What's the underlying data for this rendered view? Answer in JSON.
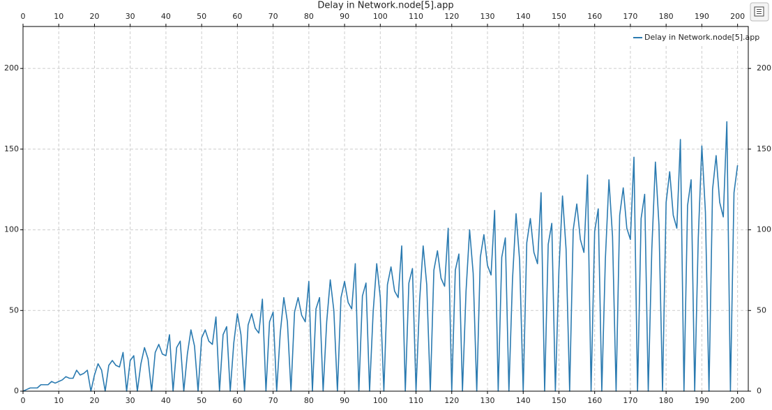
{
  "chart_data": {
    "type": "line",
    "title": "Delay in Network.node[5].app",
    "x": [
      0,
      1,
      2,
      3,
      4,
      5,
      6,
      7,
      8,
      9,
      10,
      11,
      12,
      13,
      14,
      15,
      16,
      17,
      18,
      19,
      20,
      21,
      22,
      23,
      24,
      25,
      26,
      27,
      28,
      29,
      30,
      31,
      32,
      33,
      34,
      35,
      36,
      37,
      38,
      39,
      40,
      41,
      42,
      43,
      44,
      45,
      46,
      47,
      48,
      49,
      50,
      51,
      52,
      53,
      54,
      55,
      56,
      57,
      58,
      59,
      60,
      61,
      62,
      63,
      64,
      65,
      66,
      67,
      68,
      69,
      70,
      71,
      72,
      73,
      74,
      75,
      76,
      77,
      78,
      79,
      80,
      81,
      82,
      83,
      84,
      85,
      86,
      87,
      88,
      89,
      90,
      91,
      92,
      93,
      94,
      95,
      96,
      97,
      98,
      99,
      100,
      101,
      102,
      103,
      104,
      105,
      106,
      107,
      108,
      109,
      110,
      111,
      112,
      113,
      114,
      115,
      116,
      117,
      118,
      119,
      120,
      121,
      122,
      123,
      124,
      125,
      126,
      127,
      128,
      129,
      130,
      131,
      132,
      133,
      134,
      135,
      136,
      137,
      138,
      139,
      140,
      141,
      142,
      143,
      144,
      145,
      146,
      147,
      148,
      149,
      150,
      151,
      152,
      153,
      154,
      155,
      156,
      157,
      158,
      159,
      160,
      161,
      162,
      163,
      164,
      165,
      166,
      167,
      168,
      169,
      170,
      171,
      172,
      173,
      174,
      175,
      176,
      177,
      178,
      179,
      180,
      181,
      182,
      183,
      184,
      185,
      186,
      187,
      188,
      189,
      190,
      191,
      192,
      193,
      194,
      195,
      196,
      197,
      198,
      199,
      200
    ],
    "series": [
      {
        "name": "Delay in Network.node[5].app",
        "color": "#2a7ab0",
        "values": [
          0,
          1,
          2,
          2,
          2,
          4,
          4,
          4,
          6,
          5,
          6,
          7,
          9,
          8,
          8,
          13,
          10,
          11,
          13,
          0,
          10,
          17,
          13,
          0,
          16,
          19,
          16,
          15,
          24,
          0,
          19,
          22,
          0,
          17,
          27,
          20,
          0,
          24,
          29,
          23,
          22,
          35,
          0,
          27,
          31,
          0,
          23,
          38,
          28,
          0,
          33,
          38,
          31,
          29,
          46,
          0,
          35,
          40,
          0,
          30,
          48,
          35,
          0,
          41,
          48,
          39,
          36,
          57,
          0,
          43,
          49,
          0,
          36,
          58,
          43,
          0,
          49,
          58,
          47,
          43,
          68,
          0,
          51,
          58,
          0,
          43,
          69,
          50,
          0,
          58,
          68,
          55,
          51,
          79,
          0,
          59,
          67,
          0,
          49,
          79,
          58,
          0,
          66,
          77,
          62,
          58,
          90,
          0,
          67,
          76,
          0,
          56,
          90,
          66,
          0,
          75,
          87,
          70,
          65,
          101,
          0,
          75,
          85,
          0,
          62,
          100,
          73,
          0,
          83,
          97,
          78,
          72,
          112,
          0,
          83,
          95,
          0,
          69,
          110,
          81,
          0,
          92,
          107,
          86,
          79,
          123,
          0,
          91,
          104,
          0,
          75,
          121,
          88,
          0,
          100,
          116,
          94,
          86,
          134,
          0,
          99,
          113,
          0,
          82,
          131,
          96,
          0,
          109,
          126,
          101,
          94,
          145,
          0,
          107,
          122,
          0,
          88,
          142,
          103,
          0,
          117,
          136,
          109,
          101,
          156,
          0,
          115,
          131,
          0,
          95,
          152,
          111,
          0,
          125,
          146,
          117,
          108,
          167,
          0,
          123,
          140
        ]
      }
    ],
    "xlim": [
      0,
      203
    ],
    "ylim": [
      0,
      226
    ],
    "xticks": [
      0,
      10,
      20,
      30,
      40,
      50,
      60,
      70,
      80,
      90,
      100,
      110,
      120,
      130,
      140,
      150,
      160,
      170,
      180,
      190,
      200
    ],
    "yticks": [
      0,
      50,
      100,
      150,
      200
    ],
    "grid": true
  }
}
